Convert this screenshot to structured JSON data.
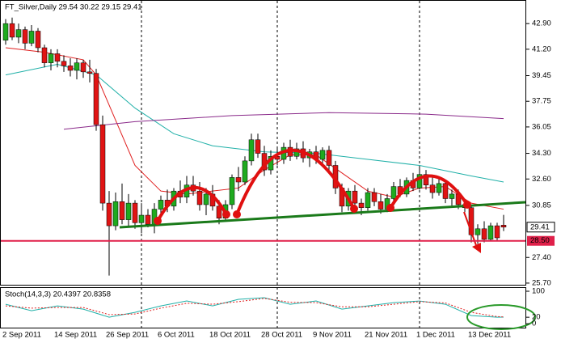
{
  "chart_data": [
    {
      "type": "candlestick",
      "title": "FT_Silver,Daily  29.54 30.22 29.15 29.41",
      "categories": [
        "2 Sep 2011",
        null,
        null,
        null,
        null,
        null,
        null,
        null,
        "14 Sep 2011",
        null,
        null,
        null,
        null,
        null,
        null,
        null,
        "26 Sep 2011",
        null,
        null,
        null,
        null,
        null,
        null,
        null,
        "6 Oct 2011",
        null,
        null,
        null,
        null,
        null,
        null,
        null,
        "18 Oct 2011",
        null,
        null,
        null,
        null,
        null,
        null,
        null,
        "28 Oct 2011",
        null,
        null,
        null,
        null,
        null,
        null,
        null,
        "9 Nov 2011",
        null,
        null,
        null,
        null,
        null,
        null,
        null,
        "21 Nov 2011",
        null,
        null,
        null,
        null,
        null,
        null,
        null,
        "1 Dec 2011",
        null,
        null,
        null,
        null,
        null,
        null,
        null,
        "13 Dec 2011",
        null,
        null,
        null,
        null,
        null
      ],
      "open": [
        41.8,
        42.9,
        42.0,
        42.5,
        41.6,
        42.4,
        41.3,
        40.3,
        40.9,
        40.4,
        40.1,
        39.8,
        40.3,
        39.7,
        39.6,
        36.2,
        31.0,
        29.5,
        31.1,
        29.9,
        31.0,
        29.7,
        30.2,
        29.6,
        30.6,
        31.2,
        30.8,
        31.8,
        31.4,
        32.2,
        31.8,
        30.9,
        31.6,
        30.8,
        30.0,
        30.9,
        32.7,
        32.4,
        33.8,
        35.2,
        34.3,
        33.2,
        34.1,
        33.9,
        34.7,
        34.1,
        34.6,
        34.0,
        34.4,
        33.9,
        34.5,
        33.5,
        32.0,
        30.8,
        31.8,
        31.0,
        30.7,
        31.7,
        31.1,
        30.6,
        31.3,
        32.1,
        31.6,
        32.5,
        32.0,
        32.9,
        32.2,
        31.7,
        32.3,
        31.3,
        31.6,
        30.9,
        30.7,
        28.9,
        29.3,
        28.6,
        29.5,
        29.54
      ],
      "high": [
        43.2,
        43.3,
        42.9,
        42.7,
        42.8,
        42.6,
        41.5,
        41.2,
        41.2,
        40.8,
        40.6,
        40.6,
        40.5,
        40.5,
        39.9,
        36.8,
        31.8,
        31.7,
        32.3,
        31.6,
        31.2,
        31.0,
        30.6,
        31.0,
        31.5,
        31.9,
        32.0,
        32.5,
        32.8,
        32.8,
        32.4,
        32.0,
        32.2,
        31.2,
        31.2,
        32.9,
        33.4,
        34.1,
        35.6,
        35.6,
        34.8,
        34.5,
        34.6,
        35.0,
        35.2,
        35.0,
        35.1,
        34.6,
        34.8,
        34.7,
        34.8,
        33.8,
        32.3,
        32.0,
        32.2,
        31.3,
        32.0,
        32.0,
        31.6,
        31.6,
        32.4,
        32.6,
        32.7,
        33.0,
        33.4,
        33.2,
        32.8,
        32.6,
        32.5,
        31.9,
        31.9,
        31.2,
        30.8,
        29.6,
        29.8,
        29.7,
        29.7,
        30.22
      ],
      "low": [
        41.5,
        41.8,
        41.6,
        41.2,
        41.4,
        41.0,
        40.0,
        39.8,
        40.0,
        39.7,
        39.4,
        39.2,
        39.3,
        39.0,
        35.8,
        30.5,
        26.2,
        29.2,
        29.6,
        29.5,
        29.3,
        29.0,
        29.4,
        29.0,
        30.0,
        30.4,
        30.5,
        31.0,
        31.0,
        31.5,
        30.5,
        30.2,
        30.5,
        29.6,
        29.8,
        30.6,
        31.8,
        32.2,
        33.5,
        34.0,
        32.8,
        32.9,
        33.5,
        33.6,
        33.8,
        33.9,
        33.7,
        33.4,
        33.6,
        33.6,
        33.2,
        31.6,
        30.4,
        30.5,
        30.6,
        30.2,
        30.5,
        30.8,
        30.3,
        30.4,
        31.0,
        31.4,
        31.4,
        31.8,
        31.9,
        31.9,
        31.3,
        31.5,
        31.0,
        30.8,
        30.6,
        30.4,
        28.4,
        28.3,
        28.4,
        28.5,
        28.5,
        29.15
      ],
      "close": [
        42.9,
        42.0,
        42.5,
        41.6,
        42.4,
        41.3,
        40.3,
        40.9,
        40.4,
        40.1,
        39.8,
        40.3,
        39.7,
        39.6,
        36.2,
        31.0,
        29.5,
        31.1,
        29.9,
        31.0,
        29.7,
        30.2,
        29.6,
        30.6,
        31.2,
        30.8,
        31.8,
        31.4,
        32.2,
        31.8,
        30.9,
        31.6,
        30.8,
        30.0,
        30.9,
        32.7,
        32.4,
        33.8,
        35.2,
        34.3,
        33.2,
        34.1,
        33.9,
        34.7,
        34.1,
        34.6,
        34.0,
        34.4,
        33.9,
        34.5,
        33.5,
        32.0,
        30.8,
        31.8,
        31.0,
        30.7,
        31.7,
        31.1,
        30.6,
        31.3,
        32.1,
        31.6,
        32.5,
        32.0,
        32.9,
        32.2,
        31.7,
        32.3,
        31.3,
        31.6,
        30.9,
        30.7,
        28.9,
        29.3,
        28.6,
        29.5,
        28.7,
        29.41
      ],
      "up_color": "#1faa1f",
      "down_color": "#e01414",
      "lines": [
        {
          "color": "#e02020",
          "x": [
            0,
            6,
            12,
            14,
            17,
            20,
            24,
            28,
            32,
            36,
            40,
            44,
            48,
            52,
            56,
            60,
            64,
            68,
            72,
            77
          ],
          "values": [
            41.3,
            41.0,
            40.5,
            39.5,
            36.5,
            33.5,
            31.8,
            31.6,
            31.8,
            32.0,
            33.2,
            34.2,
            34.2,
            33.0,
            31.8,
            31.4,
            32.0,
            32.1,
            31.0,
            30.6
          ]
        },
        {
          "color": "#20b0a8",
          "x": [
            0,
            8,
            14,
            20,
            26,
            32,
            40,
            48,
            56,
            64,
            72,
            77
          ],
          "values": [
            39.5,
            40.2,
            39.5,
            37.3,
            35.6,
            34.8,
            34.4,
            34.3,
            33.9,
            33.5,
            32.8,
            32.4
          ]
        },
        {
          "color": "#8a2a8a",
          "x": [
            9,
            20,
            35,
            50,
            65,
            77
          ],
          "values": [
            35.9,
            36.4,
            36.8,
            37.0,
            36.9,
            36.6
          ]
        }
      ],
      "levels": [
        {
          "value": 28.5,
          "label": "28.50",
          "color": "#e0204a"
        }
      ],
      "last_price": 29.41,
      "ylim": [
        25.59,
        44.41
      ],
      "yticks": [
        {
          "value": 42.9,
          "label": "42.90"
        },
        {
          "value": 41.2,
          "label": "41.20"
        },
        39.45,
        37.75,
        36.05,
        {
          "value": 34.3,
          "label": "34.30"
        },
        {
          "value": 32.6,
          "label": "32.60"
        },
        30.85,
        {
          "value": 27.4,
          "label": "27.40"
        },
        {
          "value": 25.7,
          "label": "25.70"
        }
      ]
    },
    {
      "type": "line",
      "title": "Stoch(14,3,3) 20.4397 20.8358",
      "series": [
        {
          "color": "#20b0a8",
          "x": [
            0,
            4,
            8,
            12,
            16,
            20,
            24,
            28,
            32,
            36,
            40,
            44,
            48,
            52,
            56,
            60,
            64,
            68,
            72,
            76,
            77
          ],
          "values": [
            60,
            40,
            55,
            45,
            20,
            35,
            55,
            70,
            55,
            75,
            80,
            60,
            70,
            45,
            55,
            65,
            70,
            60,
            25,
            20,
            20.4397
          ]
        },
        {
          "color": "#e02020",
          "dash": true,
          "x": [
            0,
            4,
            8,
            12,
            16,
            20,
            24,
            28,
            32,
            36,
            40,
            44,
            48,
            52,
            56,
            60,
            64,
            68,
            72,
            76,
            77
          ],
          "values": [
            55,
            48,
            50,
            50,
            28,
            30,
            48,
            63,
            60,
            68,
            78,
            66,
            65,
            52,
            52,
            60,
            68,
            64,
            35,
            22,
            20.8358
          ]
        }
      ],
      "ylim": [
        -12,
        110
      ],
      "yticks": [
        100,
        20,
        0
      ]
    }
  ]
}
